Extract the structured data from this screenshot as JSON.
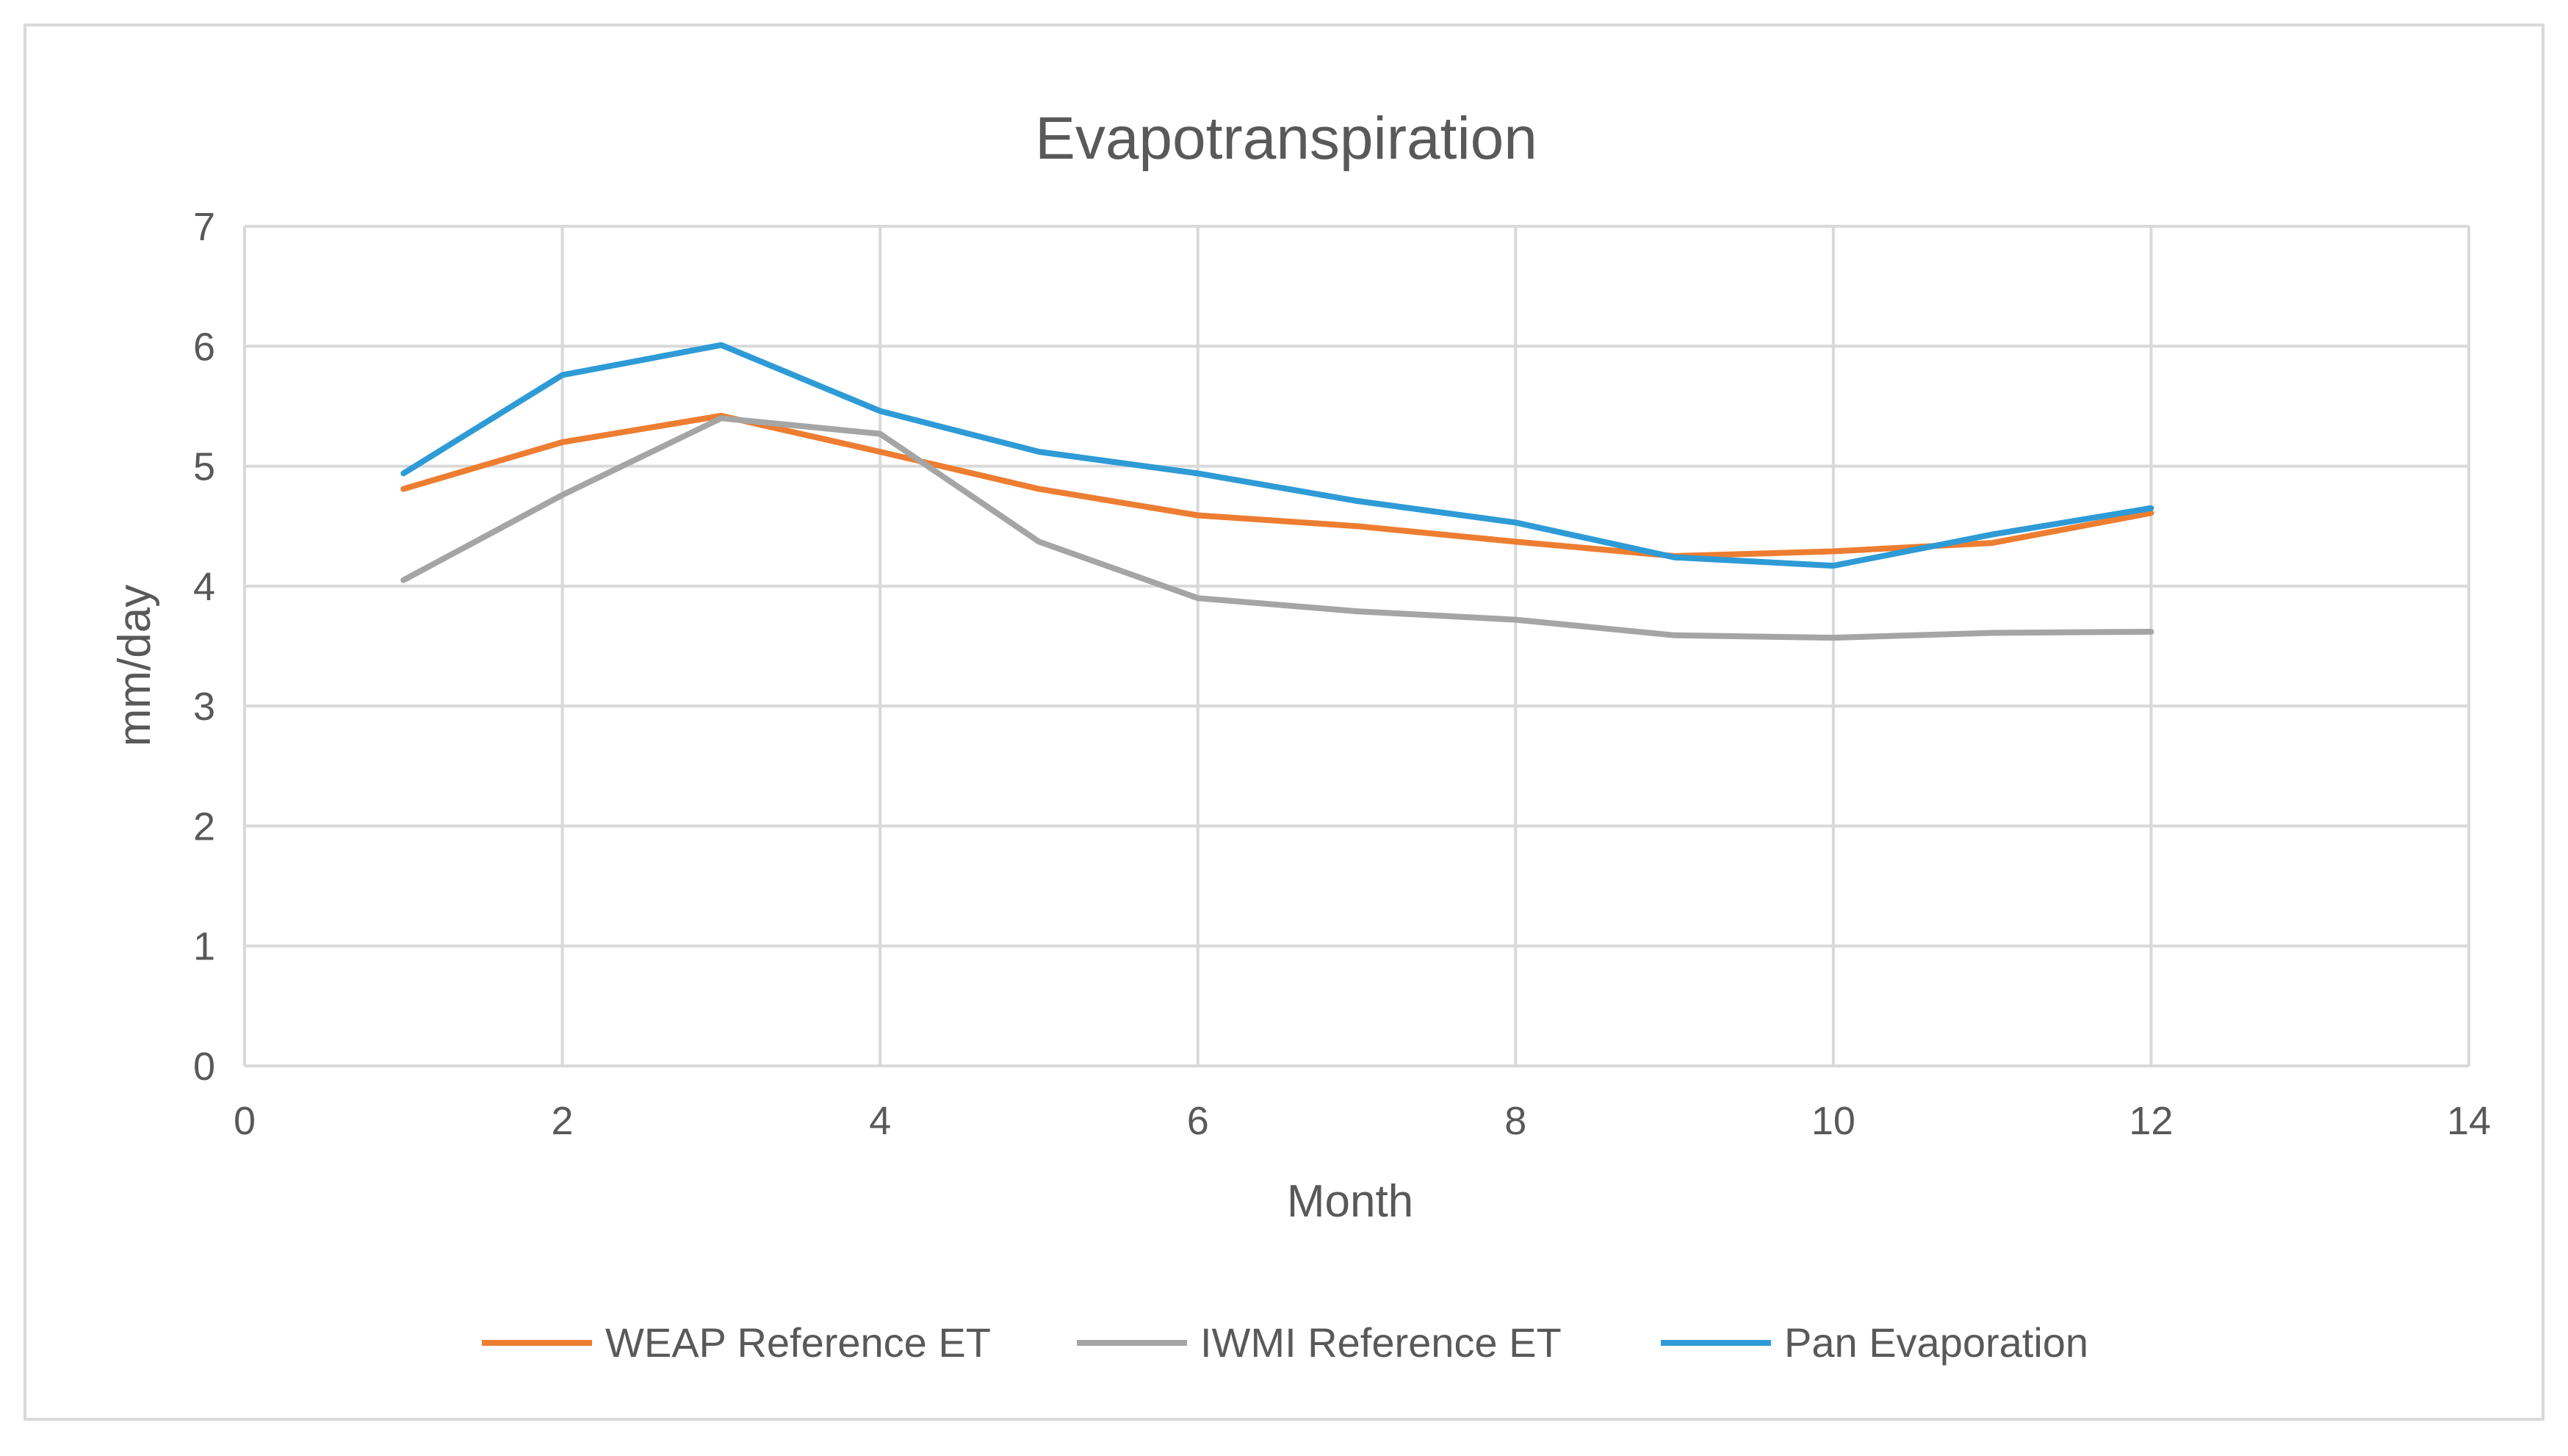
{
  "chart_data": {
    "type": "line",
    "title": "Evapotranspiration",
    "xlabel": "Month",
    "ylabel": "mm/day",
    "xlim": [
      0,
      14
    ],
    "ylim": [
      0,
      7
    ],
    "xticks": [
      0,
      2,
      4,
      6,
      8,
      10,
      12,
      14
    ],
    "yticks": [
      0,
      1,
      2,
      3,
      4,
      5,
      6,
      7
    ],
    "grid": true,
    "legend_position": "bottom",
    "x": [
      1,
      2,
      3,
      4,
      5,
      6,
      7,
      8,
      9,
      10,
      11,
      12
    ],
    "series": [
      {
        "name": "WEAP Reference ET",
        "color": "#ED7D31",
        "values": [
          4.81,
          5.2,
          5.42,
          5.12,
          4.81,
          4.59,
          4.5,
          4.37,
          4.25,
          4.29,
          4.36,
          4.61
        ]
      },
      {
        "name": "IWMI Reference ET",
        "color": "#A5A5A5",
        "values": [
          4.05,
          4.76,
          5.4,
          5.27,
          4.37,
          3.9,
          3.79,
          3.72,
          3.59,
          3.57,
          3.61,
          3.62
        ]
      },
      {
        "name": "Pan Evaporation",
        "color": "#2E9BD6",
        "values": [
          4.94,
          5.76,
          6.01,
          5.46,
          5.12,
          4.94,
          4.71,
          4.53,
          4.24,
          4.17,
          4.43,
          4.65
        ]
      }
    ]
  }
}
